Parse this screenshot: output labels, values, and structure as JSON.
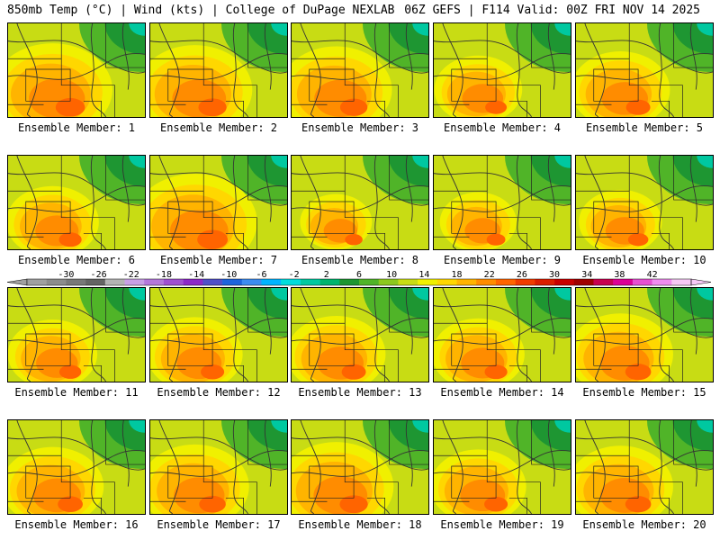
{
  "header": {
    "left_title": "850mb Temp (°C) | Wind (kts) | College of DuPage NEXLAB",
    "right_title": "06Z GEFS | F114 Valid: 00Z FRI NOV 14 2025"
  },
  "members": [
    {
      "label": "Ensemble Member: 1",
      "warmth": 0.75
    },
    {
      "label": "Ensemble Member: 2",
      "warmth": 0.72
    },
    {
      "label": "Ensemble Member: 3",
      "warmth": 0.7
    },
    {
      "label": "Ensemble Member: 4",
      "warmth": 0.55
    },
    {
      "label": "Ensemble Member: 5",
      "warmth": 0.62
    },
    {
      "label": "Ensemble Member: 6",
      "warmth": 0.58
    },
    {
      "label": "Ensemble Member: 7",
      "warmth": 0.78
    },
    {
      "label": "Ensemble Member: 8",
      "warmth": 0.45
    },
    {
      "label": "Ensemble Member: 9",
      "warmth": 0.48
    },
    {
      "label": "Ensemble Member: 10",
      "warmth": 0.52
    },
    {
      "label": "Ensemble Member: 11",
      "warmth": 0.56
    },
    {
      "label": "Ensemble Member: 12",
      "warmth": 0.6
    },
    {
      "label": "Ensemble Member: 13",
      "warmth": 0.62
    },
    {
      "label": "Ensemble Member: 14",
      "warmth": 0.58
    },
    {
      "label": "Ensemble Member: 15",
      "warmth": 0.66
    },
    {
      "label": "Ensemble Member: 16",
      "warmth": 0.64
    },
    {
      "label": "Ensemble Member: 17",
      "warmth": 0.68
    },
    {
      "label": "Ensemble Member: 18",
      "warmth": 0.72
    },
    {
      "label": "Ensemble Member: 19",
      "warmth": 0.6
    },
    {
      "label": "Ensemble Member: 20",
      "warmth": 0.66
    }
  ],
  "colorbar": {
    "labels": [
      "-30",
      "-26",
      "-22",
      "-18",
      "-14",
      "-10",
      "-6",
      "-2",
      "2",
      "6",
      "10",
      "14",
      "18",
      "22",
      "26",
      "30",
      "34",
      "38",
      "42"
    ],
    "colors": [
      "#a0a0a0",
      "#8c8c8c",
      "#787878",
      "#646464",
      "#b4b4b4",
      "#c8a0e6",
      "#b478dc",
      "#a050d2",
      "#8c28c8",
      "#5050c8",
      "#1e64dc",
      "#3c8cf0",
      "#00b4ff",
      "#00dcdc",
      "#00c8a0",
      "#00b46e",
      "#1e9632",
      "#50b428",
      "#8cc81e",
      "#c8dc14",
      "#f0f000",
      "#ffd700",
      "#ffb400",
      "#ff8c00",
      "#ff6400",
      "#f03c00",
      "#dc1e00",
      "#c80000",
      "#a00000",
      "#c80050",
      "#dc0096",
      "#e650d2",
      "#f08cf0",
      "#f5c8f5"
    ]
  }
}
